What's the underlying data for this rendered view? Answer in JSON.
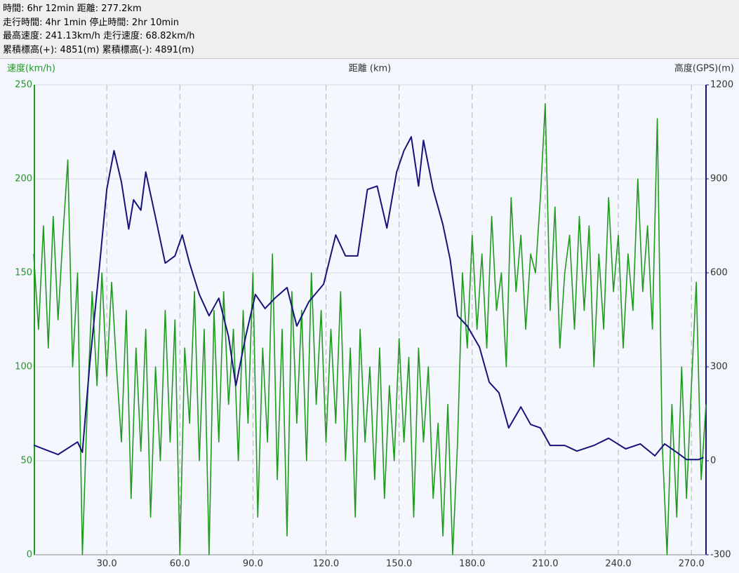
{
  "header_lines": [
    "時間: 6hr 12min 距離: 277.2km",
    "走行時間: 4hr 1min 停止時間: 2hr 10min",
    "最高速度: 241.13km/h 走行速度: 68.82km/h",
    "累積標高(+): 4851(m) 累積標高(-): 4891(m)"
  ],
  "chart_data": {
    "type": "line",
    "xlabel": "距離 (km)",
    "ylabel": "速度(km/h)",
    "y2label": "高度(GPS)(m)",
    "xlim": [
      0,
      276
    ],
    "ylim": [
      0,
      250
    ],
    "y2lim": [
      -300,
      1200
    ],
    "xticks": [
      {
        "value": 30,
        "label": "30.0"
      },
      {
        "value": 60,
        "label": "60.0"
      },
      {
        "value": 90,
        "label": "90.0"
      },
      {
        "value": 120,
        "label": "120.0"
      },
      {
        "value": 150,
        "label": "150.0"
      },
      {
        "value": 180,
        "label": "180.0"
      },
      {
        "value": 210,
        "label": "210.0"
      },
      {
        "value": 240,
        "label": "240.0"
      },
      {
        "value": 270,
        "label": "270.0"
      }
    ],
    "yticks": [
      0,
      50,
      100,
      150,
      200,
      250
    ],
    "y2ticks": [
      -300,
      0,
      300,
      600,
      900,
      1200
    ],
    "grid": true,
    "series": [
      {
        "color": "#1f9a1f",
        "x": [
          0,
          2,
          4,
          6,
          8,
          10,
          12,
          14,
          16,
          18,
          20,
          22,
          24,
          26,
          28,
          30,
          32,
          34,
          36,
          38,
          40,
          42,
          44,
          46,
          48,
          50,
          52,
          54,
          56,
          58,
          60,
          62,
          64,
          66,
          68,
          70,
          72,
          74,
          76,
          78,
          80,
          82,
          84,
          86,
          88,
          90,
          92,
          94,
          96,
          98,
          100,
          102,
          104,
          106,
          108,
          110,
          112,
          114,
          116,
          118,
          120,
          122,
          124,
          126,
          128,
          130,
          132,
          134,
          136,
          138,
          140,
          142,
          144,
          146,
          148,
          150,
          152,
          154,
          156,
          158,
          160,
          162,
          164,
          166,
          168,
          170,
          172,
          174,
          176,
          178,
          180,
          182,
          184,
          186,
          188,
          190,
          192,
          194,
          196,
          198,
          200,
          202,
          204,
          206,
          208,
          210,
          212,
          214,
          216,
          218,
          220,
          222,
          224,
          226,
          228,
          230,
          232,
          234,
          236,
          238,
          240,
          242,
          244,
          246,
          248,
          250,
          252,
          254,
          256,
          258,
          260,
          262,
          264,
          266,
          268,
          270,
          272,
          274,
          276
        ],
        "values": [
          160,
          120,
          175,
          110,
          180,
          125,
          170,
          210,
          100,
          150,
          0,
          80,
          140,
          90,
          150,
          95,
          145,
          100,
          60,
          130,
          30,
          110,
          55,
          120,
          20,
          100,
          50,
          130,
          60,
          125,
          0,
          110,
          70,
          140,
          50,
          120,
          0,
          130,
          60,
          140,
          80,
          120,
          50,
          130,
          70,
          150,
          20,
          110,
          60,
          160,
          40,
          120,
          10,
          140,
          70,
          130,
          50,
          150,
          80,
          130,
          60,
          120,
          70,
          140,
          50,
          110,
          20,
          120,
          60,
          100,
          40,
          110,
          30,
          90,
          50,
          115,
          60,
          105,
          20,
          110,
          60,
          100,
          30,
          70,
          10,
          80,
          0,
          60,
          150,
          110,
          170,
          120,
          160,
          110,
          180,
          130,
          150,
          100,
          190,
          140,
          170,
          120,
          160,
          150,
          190,
          240,
          130,
          185,
          110,
          150,
          170,
          120,
          180,
          130,
          175,
          100,
          160,
          120,
          190,
          140,
          170,
          110,
          160,
          130,
          200,
          140,
          175,
          120,
          232,
          60,
          0,
          80,
          20,
          100,
          30,
          90,
          145,
          40,
          80
        ]
      },
      {
        "color": "#14147a",
        "axis": "y2",
        "x": [
          0,
          10,
          18,
          20,
          23,
          27,
          30,
          33,
          36,
          39,
          41,
          44,
          46,
          50,
          54,
          58,
          61,
          64,
          68,
          72,
          76,
          80,
          83,
          87,
          91,
          95,
          99,
          104,
          108,
          113,
          119,
          124,
          128,
          133,
          137,
          141,
          145,
          149,
          152,
          155,
          158,
          160,
          164,
          168,
          171,
          174,
          178,
          183,
          187,
          191,
          195,
          200,
          204,
          208,
          212,
          218,
          223,
          230,
          236,
          243,
          249,
          255,
          259,
          264,
          268,
          273,
          275
        ],
        "values": [
          50,
          20,
          60,
          27,
          307,
          620,
          866,
          990,
          890,
          740,
          833,
          800,
          922,
          777,
          631,
          654,
          721,
          631,
          531,
          463,
          519,
          396,
          240,
          396,
          531,
          486,
          519,
          553,
          430,
          508,
          564,
          721,
          654,
          654,
          866,
          877,
          743,
          922,
          990,
          1034,
          877,
          1023,
          866,
          754,
          642,
          463,
          430,
          363,
          251,
          217,
          105,
          172,
          116,
          105,
          49,
          49,
          31,
          49,
          72,
          38,
          54,
          16,
          54,
          27,
          4,
          4,
          11
        ]
      }
    ]
  }
}
